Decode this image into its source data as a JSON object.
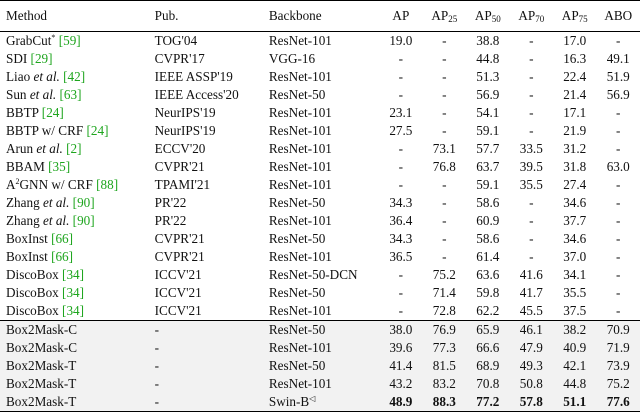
{
  "headers": {
    "method": "Method",
    "pub": "Pub.",
    "backbone": "Backbone",
    "ap": "AP",
    "ap25": {
      "base": "AP",
      "sub": "25"
    },
    "ap50": {
      "base": "AP",
      "sub": "50"
    },
    "ap70": {
      "base": "AP",
      "sub": "70"
    },
    "ap75": {
      "base": "AP",
      "sub": "75"
    },
    "abo": "ABO"
  },
  "rows": [
    {
      "name": "GrabCut",
      "mark": "*",
      "et_al": "",
      "cite": "[59]",
      "pub": "TOG'04",
      "backbone": "ResNet-101",
      "vals": [
        "19.0",
        "-",
        "38.8",
        "-",
        "17.0",
        "-"
      ]
    },
    {
      "name": "SDI",
      "mark": "",
      "et_al": "",
      "cite": "[29]",
      "pub": "CVPR'17",
      "backbone": "VGG-16",
      "vals": [
        "-",
        "-",
        "44.8",
        "-",
        "16.3",
        "49.1"
      ]
    },
    {
      "name": "Liao",
      "mark": "",
      "et_al": "et al.",
      "cite": "[42]",
      "pub": "IEEE ASSP'19",
      "backbone": "ResNet-101",
      "vals": [
        "-",
        "-",
        "51.3",
        "-",
        "22.4",
        "51.9"
      ]
    },
    {
      "name": "Sun",
      "mark": "",
      "et_al": "et al.",
      "cite": "[63]",
      "pub": "IEEE Access'20",
      "backbone": "ResNet-50",
      "vals": [
        "-",
        "-",
        "56.9",
        "-",
        "21.4",
        "56.9"
      ]
    },
    {
      "name": "BBTP",
      "mark": "",
      "et_al": "",
      "cite": "[24]",
      "pub": "NeurIPS'19",
      "backbone": "ResNet-101",
      "vals": [
        "23.1",
        "-",
        "54.1",
        "-",
        "17.1",
        "-"
      ]
    },
    {
      "name": "BBTP w/ CRF",
      "mark": "",
      "et_al": "",
      "cite": "[24]",
      "pub": "NeurIPS'19",
      "backbone": "ResNet-101",
      "vals": [
        "27.5",
        "-",
        "59.1",
        "-",
        "21.9",
        "-"
      ]
    },
    {
      "name": "Arun",
      "mark": "",
      "et_al": "et al.",
      "cite": "[2]",
      "pub": "ECCV'20",
      "backbone": "ResNet-101",
      "vals": [
        "-",
        "73.1",
        "57.7",
        "33.5",
        "31.2",
        "-"
      ]
    },
    {
      "name": "BBAM",
      "mark": "",
      "et_al": "",
      "cite": "[35]",
      "pub": "CVPR'21",
      "backbone": "ResNet-101",
      "vals": [
        "-",
        "76.8",
        "63.7",
        "39.5",
        "31.8",
        "63.0"
      ]
    },
    {
      "name": "A",
      "sup": "2",
      "name_rest": "GNN w/ CRF",
      "mark": "",
      "et_al": "",
      "cite": "[88]",
      "pub": "TPAMI'21",
      "backbone": "ResNet-101",
      "vals": [
        "-",
        "-",
        "59.1",
        "35.5",
        "27.4",
        "-"
      ]
    },
    {
      "name": "Zhang",
      "mark": "",
      "et_al": "et al.",
      "cite": "[90]",
      "pub": "PR'22",
      "backbone": "ResNet-50",
      "vals": [
        "34.3",
        "-",
        "58.6",
        "-",
        "34.6",
        "-"
      ]
    },
    {
      "name": "Zhang",
      "mark": "",
      "et_al": "et al.",
      "cite": "[90]",
      "pub": "PR'22",
      "backbone": "ResNet-101",
      "vals": [
        "36.4",
        "-",
        "60.9",
        "-",
        "37.7",
        "-"
      ]
    },
    {
      "name": "BoxInst",
      "mark": "",
      "et_al": "",
      "cite": "[66]",
      "pub": "CVPR'21",
      "backbone": "ResNet-50",
      "vals": [
        "34.3",
        "-",
        "58.6",
        "-",
        "34.6",
        "-"
      ]
    },
    {
      "name": "BoxInst",
      "mark": "",
      "et_al": "",
      "cite": "[66]",
      "pub": "CVPR'21",
      "backbone": "ResNet-101",
      "vals": [
        "36.5",
        "-",
        "61.4",
        "-",
        "37.0",
        "-"
      ]
    },
    {
      "name": "DiscoBox",
      "mark": "",
      "et_al": "",
      "cite": "[34]",
      "pub": "ICCV'21",
      "backbone": "ResNet-50-DCN",
      "vals": [
        "-",
        "75.2",
        "63.6",
        "41.6",
        "34.1",
        "-"
      ]
    },
    {
      "name": "DiscoBox",
      "mark": "",
      "et_al": "",
      "cite": "[34]",
      "pub": "ICCV'21",
      "backbone": "ResNet-50",
      "vals": [
        "-",
        "71.4",
        "59.8",
        "41.7",
        "35.5",
        "-"
      ]
    },
    {
      "name": "DiscoBox",
      "mark": "",
      "et_al": "",
      "cite": "[34]",
      "pub": "ICCV'21",
      "backbone": "ResNet-101",
      "vals": [
        "-",
        "72.8",
        "62.2",
        "45.5",
        "37.5",
        "-"
      ]
    }
  ],
  "ours": [
    {
      "name": "Box2Mask-C",
      "pub": "-",
      "backbone": "ResNet-50",
      "vals": [
        "38.0",
        "76.9",
        "65.9",
        "46.1",
        "38.2",
        "70.9"
      ]
    },
    {
      "name": "Box2Mask-C",
      "pub": "-",
      "backbone": "ResNet-101",
      "vals": [
        "39.6",
        "77.3",
        "66.6",
        "47.9",
        "40.9",
        "71.9"
      ]
    },
    {
      "name": "Box2Mask-T",
      "pub": "-",
      "backbone": "ResNet-50",
      "vals": [
        "41.4",
        "81.5",
        "68.9",
        "49.3",
        "42.1",
        "73.9"
      ]
    },
    {
      "name": "Box2Mask-T",
      "pub": "-",
      "backbone": "ResNet-101",
      "vals": [
        "43.2",
        "83.2",
        "70.8",
        "50.8",
        "44.8",
        "75.2"
      ]
    },
    {
      "name": "Box2Mask-T",
      "pub": "-",
      "backbone": "Swin-B",
      "backbone_mark": "◁",
      "vals": [
        "48.9",
        "88.3",
        "77.2",
        "57.8",
        "51.1",
        "77.6"
      ],
      "bold": true
    }
  ]
}
